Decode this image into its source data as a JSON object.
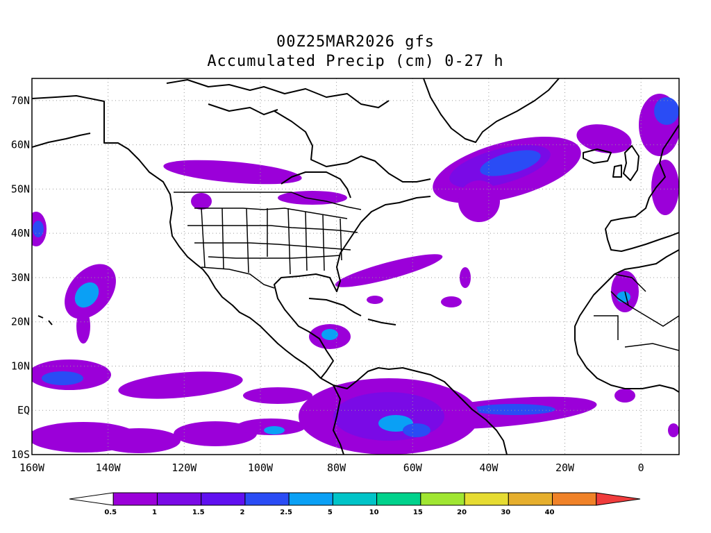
{
  "title": {
    "line1": "00Z25MAR2026 gfs",
    "line2": "Accumulated Precip (cm) 0-27 h"
  },
  "map": {
    "projection": "cylindrical",
    "lon_range": [
      -160,
      10
    ],
    "lat_range": [
      -10,
      75
    ],
    "grid": "dotted",
    "lon_ticks": [
      {
        "value": -160,
        "label": "160W"
      },
      {
        "value": -140,
        "label": "140W"
      },
      {
        "value": -120,
        "label": "120W"
      },
      {
        "value": -100,
        "label": "100W"
      },
      {
        "value": -80,
        "label": "80W"
      },
      {
        "value": -60,
        "label": "60W"
      },
      {
        "value": -40,
        "label": "40W"
      },
      {
        "value": -20,
        "label": "20W"
      },
      {
        "value": 0,
        "label": "0"
      }
    ],
    "lat_ticks": [
      {
        "value": 70,
        "label": "70N"
      },
      {
        "value": 60,
        "label": "60N"
      },
      {
        "value": 50,
        "label": "50N"
      },
      {
        "value": 40,
        "label": "40N"
      },
      {
        "value": 30,
        "label": "30N"
      },
      {
        "value": 20,
        "label": "20N"
      },
      {
        "value": 10,
        "label": "10N"
      },
      {
        "value": 0,
        "label": "EQ"
      },
      {
        "value": -10,
        "label": "10S"
      }
    ]
  },
  "colorbar": {
    "levels": [
      "0.5",
      "1",
      "1.5",
      "2",
      "2.5",
      "5",
      "10",
      "15",
      "20",
      "30",
      "40"
    ],
    "colors": [
      "#ffffff",
      "#9b00d9",
      "#7a0ae6",
      "#6010f0",
      "#2a4cf5",
      "#0aa0f5",
      "#00c4c8",
      "#00d28c",
      "#a0e632",
      "#e6dc32",
      "#e6af2d",
      "#f08228",
      "#f03c3c"
    ]
  }
}
